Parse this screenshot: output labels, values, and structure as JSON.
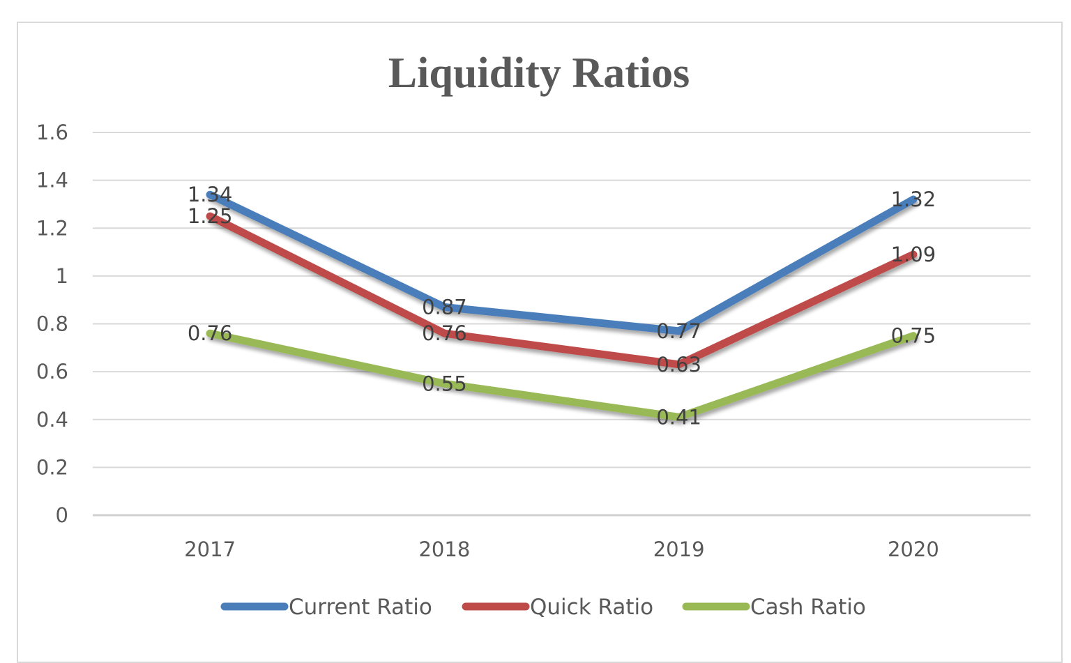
{
  "chart_data": {
    "type": "line",
    "title": "Liquidity Ratios",
    "categories": [
      "2017",
      "2018",
      "2019",
      "2020"
    ],
    "series": [
      {
        "name": "Current Ratio",
        "values": [
          1.34,
          0.87,
          0.77,
          1.32
        ],
        "color": "#4a7ebb"
      },
      {
        "name": "Quick Ratio",
        "values": [
          1.25,
          0.76,
          0.63,
          1.09
        ],
        "color": "#be4b48"
      },
      {
        "name": "Cash Ratio",
        "values": [
          0.76,
          0.55,
          0.41,
          0.75
        ],
        "color": "#98b954"
      }
    ],
    "ylim": [
      0,
      1.6
    ],
    "yticks": [
      "0",
      "0.2",
      "0.4",
      "0.6",
      "0.8",
      "1",
      "1.2",
      "1.4",
      "1.6"
    ],
    "grid": true,
    "legend": "bottom",
    "data_labels": true
  }
}
